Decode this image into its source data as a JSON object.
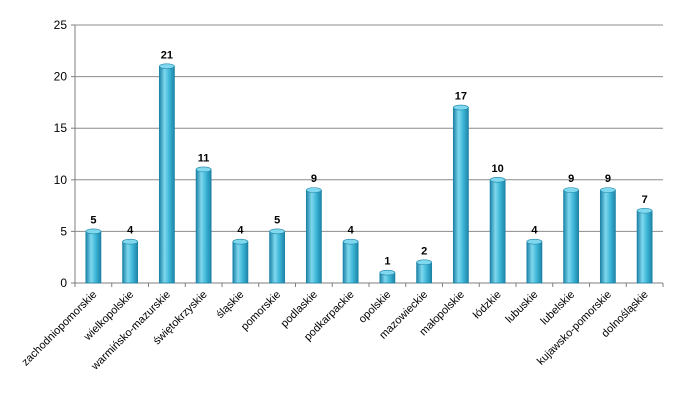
{
  "chart_data": {
    "type": "bar",
    "title": "",
    "xlabel": "",
    "ylabel": "",
    "ylim": [
      0,
      25
    ],
    "yticks": [
      0,
      5,
      10,
      15,
      20,
      25
    ],
    "grid": true,
    "legend": "none",
    "categories": [
      "zachodniopomorskie",
      "wielkopolskie",
      "warmińsko-mazurskie",
      "świętokrzyskie",
      "śląskie",
      "pomorskie",
      "podlaskie",
      "podkarpackie",
      "opolskie",
      "mazowieckie",
      "małopolskie",
      "łódzkie",
      "lubuskie",
      "lubelskie",
      "kujawsko-pomorskie",
      "dolnośląskie"
    ],
    "values": [
      5,
      4,
      21,
      11,
      4,
      5,
      9,
      4,
      1,
      2,
      17,
      10,
      4,
      9,
      9,
      7
    ],
    "data_labels": [
      "5",
      "4",
      "21",
      "11",
      "4",
      "5",
      "9",
      "4",
      "1",
      "2",
      "17",
      "10",
      "4",
      "9",
      "9",
      "7"
    ],
    "colors": {
      "bar_light": "#7fd8ee",
      "bar_mid": "#3fb7d8",
      "bar_dark": "#1e84a8",
      "grid": "#8c8c8c",
      "axis": "#7f7f7f"
    }
  }
}
